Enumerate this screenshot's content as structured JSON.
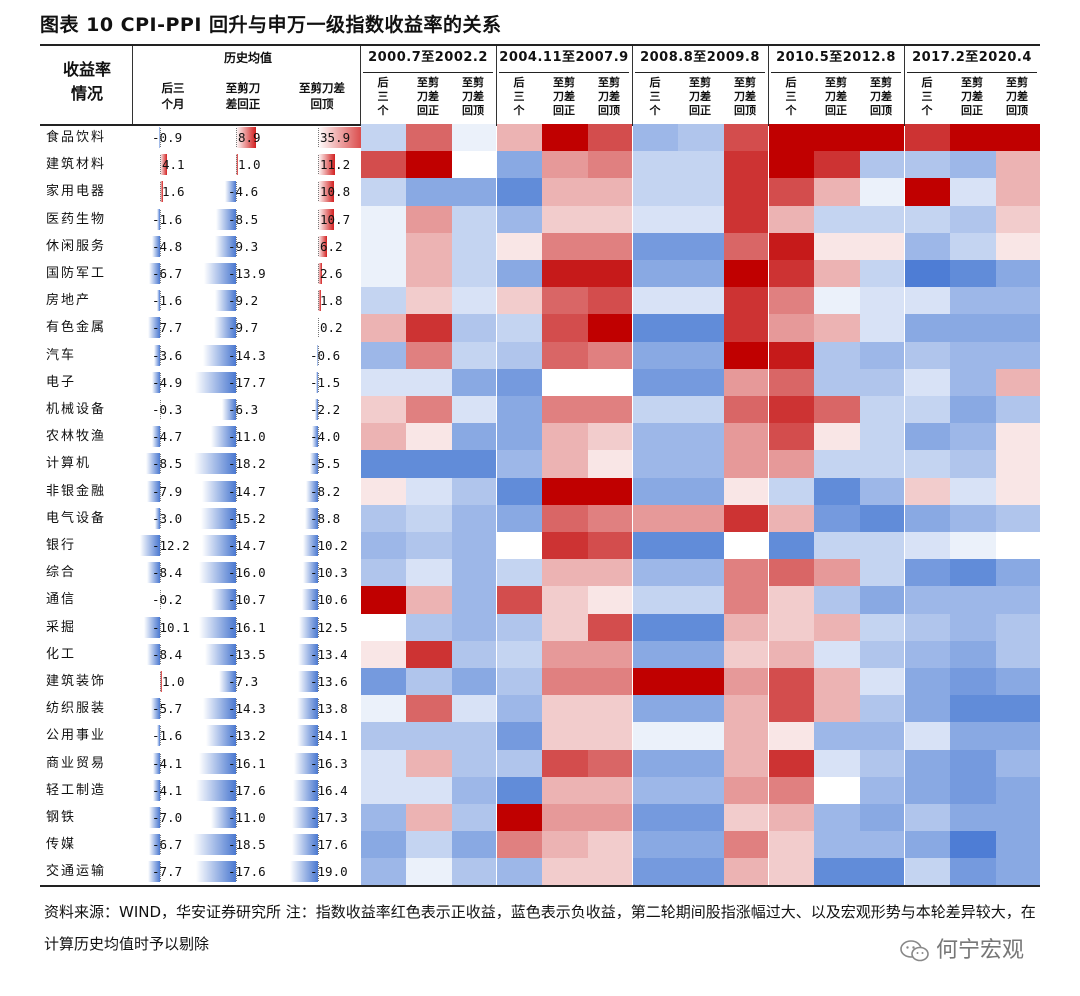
{
  "title": "图表 10 CPI-PPI 回升与申万一级指数收益率的关系",
  "header": {
    "ind_label": "收益率\n情况",
    "hist_label": "历史均值",
    "hist_cols": [
      "后三\n个月",
      "至剪刀\n差回正",
      "至剪刀差\n回顶"
    ],
    "periods": [
      "2000.7至2002.2",
      "2004.11至2007.9",
      "2008.8至2009.8",
      "2010.5至2012.8",
      "2017.2至2020.4"
    ],
    "period_cols": [
      "后\n三\n个",
      "至剪\n刀差\n回正",
      "至剪\n刀差\n回顶"
    ]
  },
  "chart_data": {
    "type": "heatmap",
    "title": "CPI-PPI 回升与申万一级指数收益率的关系",
    "rows": [
      {
        "name": "食品饮料",
        "hist": [
          -0.9,
          8.9,
          35.9
        ],
        "heat": [
          -0.3,
          0.6,
          -0.1,
          0.3,
          1.0,
          0.7,
          -0.5,
          -0.4,
          0.7,
          1.0,
          1.0,
          1.0,
          0.8,
          1.0,
          1.0
        ]
      },
      {
        "name": "建筑材料",
        "hist": [
          4.1,
          1.0,
          11.2
        ],
        "heat": [
          0.7,
          1.0,
          0.0,
          -0.6,
          0.4,
          0.5,
          -0.3,
          -0.3,
          0.8,
          1.0,
          0.8,
          -0.4,
          -0.4,
          -0.5,
          0.3
        ]
      },
      {
        "name": "家用电器",
        "hist": [
          1.6,
          -4.6,
          10.8
        ],
        "heat": [
          -0.3,
          -0.6,
          -0.6,
          -0.8,
          0.3,
          0.3,
          -0.3,
          -0.3,
          0.8,
          0.7,
          0.3,
          -0.1,
          1.0,
          -0.2,
          0.3
        ]
      },
      {
        "name": "医药生物",
        "hist": [
          -1.6,
          -8.5,
          10.7
        ],
        "heat": [
          -0.1,
          0.4,
          -0.3,
          -0.5,
          0.2,
          0.2,
          -0.2,
          -0.2,
          0.8,
          0.3,
          -0.3,
          -0.3,
          -0.3,
          -0.4,
          0.2
        ]
      },
      {
        "name": "休闲服务",
        "hist": [
          -4.8,
          -9.3,
          6.2
        ],
        "heat": [
          -0.1,
          0.3,
          -0.3,
          0.1,
          0.5,
          0.5,
          -0.7,
          -0.7,
          0.6,
          0.9,
          0.1,
          0.1,
          -0.5,
          -0.3,
          0.1
        ]
      },
      {
        "name": "国防军工",
        "hist": [
          -6.7,
          -13.9,
          2.6
        ],
        "heat": [
          -0.1,
          0.3,
          -0.3,
          -0.6,
          0.9,
          0.9,
          -0.6,
          -0.6,
          1.0,
          0.8,
          0.3,
          -0.3,
          -0.9,
          -0.8,
          -0.6
        ]
      },
      {
        "name": "房地产",
        "hist": [
          -1.6,
          -9.2,
          1.8
        ],
        "heat": [
          -0.3,
          0.2,
          -0.2,
          0.2,
          0.6,
          0.7,
          -0.2,
          -0.2,
          0.8,
          0.5,
          -0.1,
          -0.2,
          -0.2,
          -0.5,
          -0.5
        ]
      },
      {
        "name": "有色金属",
        "hist": [
          -7.7,
          -9.7,
          0.2
        ],
        "heat": [
          0.3,
          0.8,
          -0.4,
          -0.3,
          0.7,
          1.0,
          -0.8,
          -0.8,
          0.8,
          0.4,
          0.3,
          -0.2,
          -0.6,
          -0.6,
          -0.6
        ]
      },
      {
        "name": "汽车",
        "hist": [
          -3.6,
          -14.3,
          -0.6
        ],
        "heat": [
          -0.5,
          0.5,
          -0.3,
          -0.4,
          0.6,
          0.5,
          -0.6,
          -0.6,
          1.0,
          0.9,
          -0.4,
          -0.5,
          -0.4,
          -0.5,
          -0.5
        ]
      },
      {
        "name": "电子",
        "hist": [
          -4.9,
          -17.7,
          -1.5
        ],
        "heat": [
          -0.2,
          -0.2,
          -0.6,
          -0.7,
          0.0,
          0.0,
          -0.7,
          -0.7,
          0.4,
          0.6,
          -0.4,
          -0.4,
          -0.2,
          -0.5,
          0.3
        ]
      },
      {
        "name": "机械设备",
        "hist": [
          -0.3,
          -6.3,
          -2.2
        ],
        "heat": [
          0.2,
          0.5,
          -0.2,
          -0.6,
          0.5,
          0.5,
          -0.3,
          -0.3,
          0.6,
          0.8,
          0.6,
          -0.3,
          -0.3,
          -0.6,
          -0.4
        ]
      },
      {
        "name": "农林牧渔",
        "hist": [
          -4.7,
          -11.0,
          -4.0
        ],
        "heat": [
          0.3,
          0.1,
          -0.6,
          -0.6,
          0.3,
          0.2,
          -0.5,
          -0.5,
          0.4,
          0.7,
          0.1,
          -0.3,
          -0.6,
          -0.5,
          0.1
        ]
      },
      {
        "name": "计算机",
        "hist": [
          -8.5,
          -18.2,
          -5.5
        ],
        "heat": [
          -0.8,
          -0.8,
          -0.8,
          -0.5,
          0.3,
          0.1,
          -0.5,
          -0.5,
          0.4,
          0.4,
          -0.3,
          -0.3,
          -0.3,
          -0.4,
          0.1
        ]
      },
      {
        "name": "非银金融",
        "hist": [
          -7.9,
          -14.7,
          -8.2
        ],
        "heat": [
          0.1,
          -0.2,
          -0.4,
          -0.8,
          1.0,
          1.0,
          -0.6,
          -0.6,
          0.1,
          -0.3,
          -0.8,
          -0.5,
          0.2,
          -0.2,
          0.1
        ]
      },
      {
        "name": "电气设备",
        "hist": [
          -3.0,
          -15.2,
          -8.8
        ],
        "heat": [
          -0.4,
          -0.3,
          -0.5,
          -0.6,
          0.6,
          0.5,
          0.4,
          0.4,
          0.8,
          0.3,
          -0.7,
          -0.8,
          -0.6,
          -0.5,
          -0.4
        ]
      },
      {
        "name": "银行",
        "hist": [
          -12.2,
          -14.7,
          -10.2
        ],
        "heat": [
          -0.5,
          -0.4,
          -0.5,
          0.0,
          0.8,
          0.7,
          -0.8,
          -0.8,
          0.0,
          -0.8,
          -0.3,
          -0.3,
          -0.2,
          -0.1,
          0.0
        ]
      },
      {
        "name": "综合",
        "hist": [
          -8.4,
          -16.0,
          -10.3
        ],
        "heat": [
          -0.4,
          -0.2,
          -0.5,
          -0.3,
          0.3,
          0.3,
          -0.5,
          -0.5,
          0.5,
          0.6,
          0.4,
          -0.3,
          -0.7,
          -0.8,
          -0.6
        ]
      },
      {
        "name": "通信",
        "hist": [
          -0.2,
          -10.7,
          -10.6
        ],
        "heat": [
          1.0,
          0.3,
          -0.5,
          0.7,
          0.2,
          0.1,
          -0.3,
          -0.3,
          0.5,
          0.2,
          -0.4,
          -0.6,
          -0.5,
          -0.5,
          -0.5
        ]
      },
      {
        "name": "采掘",
        "hist": [
          -10.1,
          -16.1,
          -12.5
        ],
        "heat": [
          0.0,
          -0.4,
          -0.5,
          -0.4,
          0.2,
          0.7,
          -0.8,
          -0.8,
          0.3,
          0.2,
          0.3,
          -0.3,
          -0.4,
          -0.5,
          -0.4
        ]
      },
      {
        "name": "化工",
        "hist": [
          -8.4,
          -13.5,
          -13.4
        ],
        "heat": [
          0.1,
          0.8,
          -0.4,
          -0.3,
          0.4,
          0.4,
          -0.6,
          -0.6,
          0.2,
          0.3,
          -0.2,
          -0.4,
          -0.5,
          -0.6,
          -0.4
        ]
      },
      {
        "name": "建筑装饰",
        "hist": [
          1.0,
          -7.3,
          -13.6
        ],
        "heat": [
          -0.7,
          -0.4,
          -0.6,
          -0.4,
          0.5,
          0.5,
          1.0,
          1.0,
          0.4,
          0.7,
          0.3,
          -0.2,
          -0.6,
          -0.7,
          -0.6
        ]
      },
      {
        "name": "纺织服装",
        "hist": [
          -5.7,
          -14.3,
          -13.8
        ],
        "heat": [
          -0.1,
          0.6,
          -0.2,
          -0.5,
          0.2,
          0.2,
          -0.6,
          -0.6,
          0.3,
          0.7,
          0.3,
          -0.4,
          -0.6,
          -0.8,
          -0.8
        ]
      },
      {
        "name": "公用事业",
        "hist": [
          -1.6,
          -13.2,
          -14.1
        ],
        "heat": [
          -0.4,
          -0.4,
          -0.4,
          -0.7,
          0.2,
          0.2,
          -0.1,
          -0.1,
          0.3,
          0.1,
          -0.5,
          -0.5,
          -0.2,
          -0.6,
          -0.6
        ]
      },
      {
        "name": "商业贸易",
        "hist": [
          -4.1,
          -16.1,
          -16.3
        ],
        "heat": [
          -0.2,
          0.3,
          -0.4,
          -0.4,
          0.7,
          0.6,
          -0.6,
          -0.6,
          0.3,
          0.8,
          -0.2,
          -0.4,
          -0.6,
          -0.7,
          -0.5
        ]
      },
      {
        "name": "轻工制造",
        "hist": [
          -4.1,
          -17.6,
          -16.4
        ],
        "heat": [
          -0.2,
          -0.2,
          -0.5,
          -0.8,
          0.3,
          0.3,
          -0.5,
          -0.5,
          0.4,
          0.5,
          0.0,
          -0.5,
          -0.6,
          -0.7,
          -0.6
        ]
      },
      {
        "name": "钢铁",
        "hist": [
          -7.0,
          -11.0,
          -17.3
        ],
        "heat": [
          -0.5,
          0.3,
          -0.4,
          1.0,
          0.4,
          0.4,
          -0.7,
          -0.7,
          0.2,
          0.3,
          -0.5,
          -0.6,
          -0.4,
          -0.6,
          -0.6
        ]
      },
      {
        "name": "传媒",
        "hist": [
          -6.7,
          -18.5,
          -17.6
        ],
        "heat": [
          -0.6,
          -0.3,
          -0.6,
          0.5,
          0.3,
          0.2,
          -0.6,
          -0.6,
          0.5,
          0.2,
          -0.5,
          -0.5,
          -0.6,
          -0.9,
          -0.6
        ]
      },
      {
        "name": "交通运输",
        "hist": [
          -7.7,
          -17.6,
          -19.0
        ],
        "heat": [
          -0.5,
          -0.1,
          -0.4,
          -0.5,
          0.2,
          0.2,
          -0.7,
          -0.7,
          0.3,
          0.2,
          -0.8,
          -0.8,
          -0.3,
          -0.7,
          -0.6
        ]
      }
    ]
  },
  "source": "资料来源：WIND，华安证券研究所 注：指数收益率红色表示正收益，蓝色表示负收益，第二轮期间股指涨幅过大、以及宏观形势与本轮差异较大，在计算历史均值时予以剔除",
  "watermark": "何宁宏观",
  "colors": {
    "pos": "#c00000",
    "neg": "#3a6fd0",
    "bar_pos": "#d22020",
    "bar_neg": "#4a78d0"
  }
}
